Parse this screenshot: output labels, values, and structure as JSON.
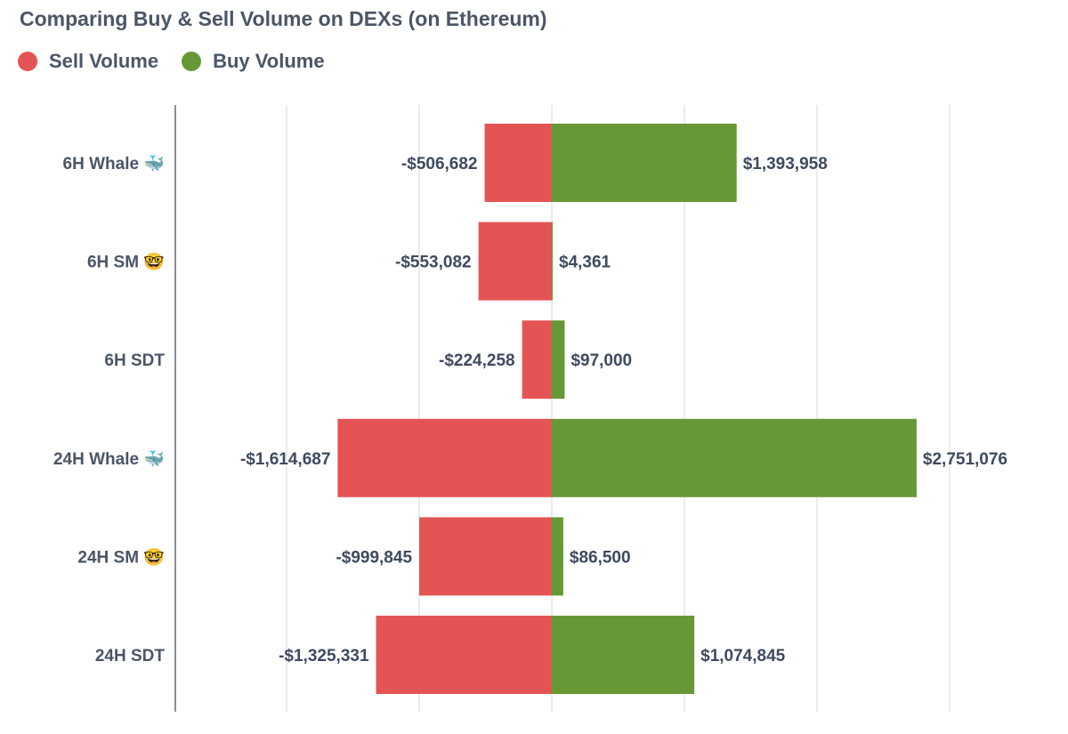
{
  "chart_data": {
    "type": "bar",
    "orientation": "horizontal",
    "stacking": "diverging",
    "title": "Comparing Buy & Sell Volume on DEXs (on Ethereum)",
    "xlabel": "",
    "ylabel": "",
    "xlim": [
      -2800000,
      3000000
    ],
    "grid": true,
    "legend_position": "top-left",
    "categories": [
      "6H Whale 🐳",
      "6H SM 🤓",
      "6H SDT",
      "24H Whale 🐳",
      "24H SM 🤓",
      "24H SDT"
    ],
    "series": [
      {
        "name": "Sell Volume",
        "color": "#e55454",
        "values": [
          -506682,
          -553082,
          -224258,
          -1614687,
          -999845,
          -1325331
        ],
        "labels": [
          "-$506,682",
          "-$553,082",
          "-$224,258",
          "-$1,614,687",
          "-$999,845",
          "-$1,325,331"
        ]
      },
      {
        "name": "Buy Volume",
        "color": "#679836",
        "values": [
          1393958,
          4361,
          97000,
          2751076,
          86500,
          1074845
        ],
        "labels": [
          "$1,393,958",
          "$4,361",
          "$97,000",
          "$2,751,076",
          "$86,500",
          "$1,074,845"
        ]
      }
    ]
  }
}
